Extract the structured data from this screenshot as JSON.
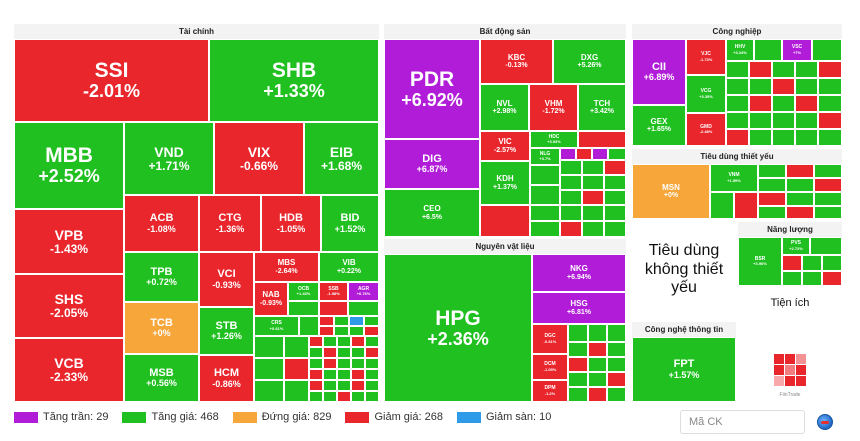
{
  "sectors": {
    "tai_chinh": "Tài chính",
    "bat_dong_san": "Bất động sản",
    "cong_nghiep": "Công nghiệp",
    "nguyen_vat_lieu": "Nguyên vật liệu",
    "tieu_dung_thiet_yeu": "Tiêu dùng thiết yếu",
    "nang_luong": "Năng lượng",
    "tieu_dung_khong_thiet_yeu": "Tiêu dùng không thiết yếu",
    "tien_ich": "Tiện ích",
    "cong_nghe_thong_tin": "Công nghệ thông tin"
  },
  "tiles": {
    "SSI": {
      "sym": "SSI",
      "pct": "-2.01%"
    },
    "SHB": {
      "sym": "SHB",
      "pct": "+1.33%"
    },
    "MBB": {
      "sym": "MBB",
      "pct": "+2.52%"
    },
    "VND": {
      "sym": "VND",
      "pct": "+1.71%"
    },
    "VIX": {
      "sym": "VIX",
      "pct": "-0.66%"
    },
    "EIB": {
      "sym": "EIB",
      "pct": "+1.68%"
    },
    "VPB": {
      "sym": "VPB",
      "pct": "-1.43%"
    },
    "ACB": {
      "sym": "ACB",
      "pct": "-1.08%"
    },
    "CTG": {
      "sym": "CTG",
      "pct": "-1.36%"
    },
    "HDB": {
      "sym": "HDB",
      "pct": "-1.05%"
    },
    "BID": {
      "sym": "BID",
      "pct": "+1.52%"
    },
    "SHS": {
      "sym": "SHS",
      "pct": "-2.05%"
    },
    "TPB": {
      "sym": "TPB",
      "pct": "+0.72%"
    },
    "VCI": {
      "sym": "VCI",
      "pct": "-0.93%"
    },
    "MBS": {
      "sym": "MBS",
      "pct": "-2.64%"
    },
    "VIB": {
      "sym": "VIB",
      "pct": "+0.22%"
    },
    "TCB": {
      "sym": "TCB",
      "pct": "+0%"
    },
    "STB": {
      "sym": "STB",
      "pct": "+1.26%"
    },
    "NAB": {
      "sym": "NAB",
      "pct": "-0.93%"
    },
    "OCB": {
      "sym": "OCB",
      "pct": "+1.43%"
    },
    "SSB": {
      "sym": "SSB",
      "pct": "-1.98%"
    },
    "AGR": {
      "sym": "AGR",
      "pct": "+6.76%"
    },
    "VCB": {
      "sym": "VCB",
      "pct": "-2.33%"
    },
    "MSB": {
      "sym": "MSB",
      "pct": "+0.56%"
    },
    "HCM": {
      "sym": "HCM",
      "pct": "-0.86%"
    },
    "CRS": {
      "sym": "CRS",
      "pct": "+0.61%"
    },
    "PDR": {
      "sym": "PDR",
      "pct": "+6.92%"
    },
    "KBC": {
      "sym": "KBC",
      "pct": "-0.13%"
    },
    "DXG": {
      "sym": "DXG",
      "pct": "+5.26%"
    },
    "NVL": {
      "sym": "NVL",
      "pct": "+2.98%"
    },
    "VHM": {
      "sym": "VHM",
      "pct": "-1.72%"
    },
    "TCH": {
      "sym": "TCH",
      "pct": "+3.42%"
    },
    "DIG": {
      "sym": "DIG",
      "pct": "+6.87%"
    },
    "VIC": {
      "sym": "VIC",
      "pct": "-2.57%"
    },
    "HDC": {
      "sym": "HDC",
      "pct": "+3.93%"
    },
    "NLG": {
      "sym": "NLG",
      "pct": "+3.7%"
    },
    "KDH": {
      "sym": "KDH",
      "pct": "+1.37%"
    },
    "CEO": {
      "sym": "CEO",
      "pct": "+6.5%"
    },
    "HPG": {
      "sym": "HPG",
      "pct": "+2.36%"
    },
    "NKG": {
      "sym": "NKG",
      "pct": "+6.94%"
    },
    "HSG": {
      "sym": "HSG",
      "pct": "+6.81%"
    },
    "DGC": {
      "sym": "DGC",
      "pct": "-0.61%"
    },
    "DCM": {
      "sym": "DCM",
      "pct": "-1.05%"
    },
    "DPM": {
      "sym": "DPM",
      "pct": "-1.2%"
    },
    "CII": {
      "sym": "CII",
      "pct": "+6.89%"
    },
    "VJC": {
      "sym": "VJC",
      "pct": "-1.73%"
    },
    "HHV": {
      "sym": "HHV",
      "pct": "+3.24%"
    },
    "VSC": {
      "sym": "VSC",
      "pct": "+7%"
    },
    "VCG": {
      "sym": "VCG",
      "pct": "+3.35%"
    },
    "GEX": {
      "sym": "GEX",
      "pct": "+1.65%"
    },
    "GMD": {
      "sym": "GMD",
      "pct": "-2.48%"
    },
    "MSN": {
      "sym": "MSN",
      "pct": "+0%"
    },
    "VNM": {
      "sym": "VNM",
      "pct": "+1.59%"
    },
    "BSR": {
      "sym": "BSR",
      "pct": "+3.96%"
    },
    "PVS": {
      "sym": "PVS",
      "pct": "+2.72%"
    },
    "FPT": {
      "sym": "FPT",
      "pct": "+1.57%"
    }
  },
  "legend": {
    "tang_tran": "Tăng trần: 29",
    "tang_gia": "Tăng giá: 468",
    "dung_gia": "Đứng giá: 829",
    "giam_gia": "Giảm giá: 268",
    "giam_san": "Giảm sàn: 10"
  },
  "search": {
    "placeholder": "Mã CK"
  },
  "logo_text": "FiinTrade",
  "colors": {
    "up": "#20c020",
    "down": "#e8262c",
    "ceiling": "#b01cd8",
    "ref": "#f7a63a",
    "floor": "#2e9be8"
  }
}
